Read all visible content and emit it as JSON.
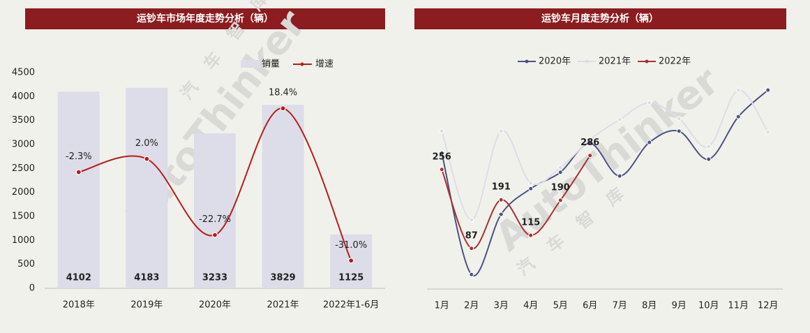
{
  "chart_data": [
    {
      "type": "bar",
      "title": "运钞车市场年度走势分析（辆）",
      "watermark": "AutoThinker",
      "watermark_cn": "汽车智库",
      "categories": [
        "2018年",
        "2019年",
        "2020年",
        "2021年",
        "2022年1-6月"
      ],
      "ylim": [
        0,
        4500
      ],
      "yticks": [
        0,
        500,
        1000,
        1500,
        2000,
        2500,
        3000,
        3500,
        4000,
        4500
      ],
      "y2lim": [
        -40,
        30
      ],
      "series": [
        {
          "name": "销量",
          "type": "bar",
          "color": "#dcdde8",
          "values": [
            4102,
            4183,
            3233,
            3829,
            1125
          ]
        },
        {
          "name": "增速",
          "type": "line",
          "axis": "y2",
          "color": "#b81c1c",
          "values": [
            -2.3,
            2.0,
            -22.7,
            18.4,
            -31.0
          ],
          "value_labels": [
            "-2.3%",
            "2.0%",
            "-22.7%",
            "18.4%",
            "-31.0%"
          ]
        }
      ]
    },
    {
      "type": "line",
      "title": "运钞车月度走势分析（辆）",
      "watermark": "AutoThinker",
      "watermark_cn": "汽车智库",
      "categories": [
        "1月",
        "2月",
        "3月",
        "4月",
        "5月",
        "6月",
        "7月",
        "8月",
        "9月",
        "10月",
        "11月",
        "12月"
      ],
      "ylim": [
        0,
        450
      ],
      "series": [
        {
          "name": "2020年",
          "color": "#4a5282",
          "values": [
            291,
            31,
            160,
            215,
            250,
            312,
            242,
            314,
            338,
            278,
            369,
            426
          ]
        },
        {
          "name": "2021年",
          "color": "#dcdde8",
          "values": [
            338,
            148,
            338,
            227,
            260,
            320,
            363,
            399,
            365,
            305,
            426,
            336
          ]
        },
        {
          "name": "2022年",
          "color": "#a83232",
          "show_labels": true,
          "values": [
            256,
            87,
            191,
            115,
            190,
            286,
            null,
            null,
            null,
            null,
            null,
            null
          ]
        }
      ]
    }
  ]
}
